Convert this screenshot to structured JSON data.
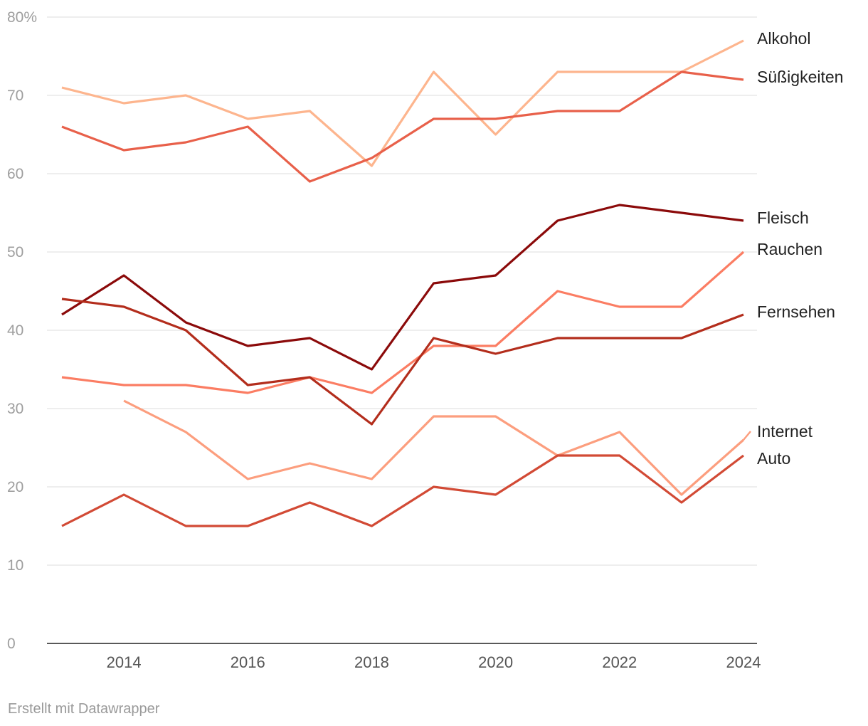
{
  "chart_data": {
    "type": "line",
    "title": "",
    "xlabel": "",
    "ylabel": "",
    "y_unit_suffix": "%",
    "ylim": [
      0,
      80
    ],
    "xlim": [
      2013,
      2024
    ],
    "x": [
      2013,
      2014,
      2015,
      2016,
      2017,
      2018,
      2019,
      2020,
      2021,
      2022,
      2023,
      2024
    ],
    "x_ticks": [
      2014,
      2016,
      2018,
      2020,
      2022,
      2024
    ],
    "y_ticks": [
      0,
      10,
      20,
      30,
      40,
      50,
      60,
      70,
      80
    ],
    "y_tick_labels": [
      "0",
      "10",
      "20",
      "30",
      "40",
      "50",
      "60",
      "70",
      "80%"
    ],
    "grid": true,
    "legend": "direct labels at right end of lines",
    "series": [
      {
        "name": "Alkohol",
        "color": "#fdb58e",
        "values": [
          71,
          69,
          70,
          67,
          68,
          61,
          73,
          65,
          73,
          73,
          73,
          77
        ]
      },
      {
        "name": "Süßigkeiten",
        "color": "#e8604a",
        "values": [
          66,
          63,
          64,
          66,
          59,
          62,
          67,
          67,
          68,
          68,
          73,
          72
        ]
      },
      {
        "name": "Fleisch",
        "color": "#8b0a0a",
        "values": [
          42,
          47,
          41,
          38,
          39,
          35,
          46,
          47,
          54,
          56,
          55,
          54
        ]
      },
      {
        "name": "Rauchen",
        "color": "#fb7d63",
        "values": [
          34,
          33,
          33,
          32,
          34,
          32,
          38,
          38,
          45,
          43,
          43,
          50
        ]
      },
      {
        "name": "Fernsehen",
        "color": "#b32d1c",
        "values": [
          44,
          43,
          40,
          33,
          34,
          28,
          39,
          37,
          39,
          39,
          39,
          42
        ]
      },
      {
        "name": "Internet",
        "color": "#fc9e7e",
        "values": [
          null,
          31,
          27,
          21,
          23,
          21,
          29,
          29,
          24,
          27,
          19,
          26
        ]
      },
      {
        "name": "Auto",
        "color": "#d24a35",
        "values": [
          15,
          19,
          15,
          15,
          18,
          15,
          20,
          19,
          24,
          24,
          18,
          24
        ]
      }
    ]
  },
  "footer": {
    "credit": "Erstellt mit Datawrapper"
  }
}
